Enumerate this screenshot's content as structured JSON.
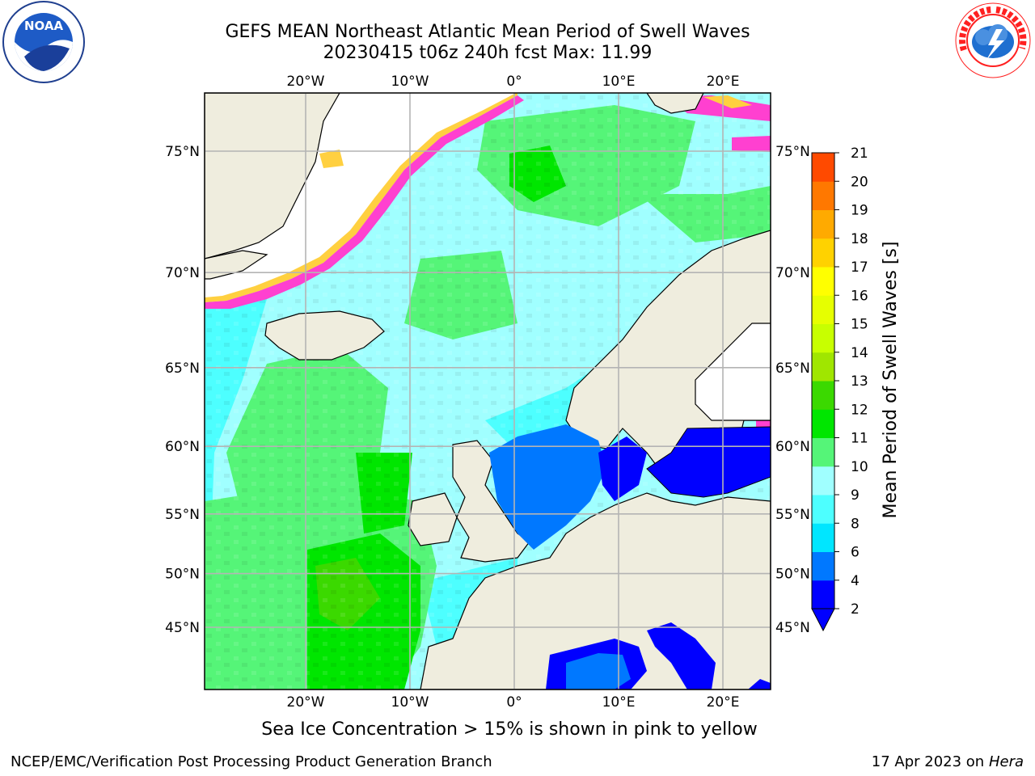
{
  "title": {
    "line1": "GEFS MEAN Northeast Atlantic Mean Period of Swell Waves",
    "line2": "20230415 t06z 240h fcst   Max: 11.99"
  },
  "logos": {
    "left": {
      "icon": "noaa-logo-icon",
      "text": "NOAA"
    },
    "right": {
      "icon": "nws-logo-icon",
      "ring_text": "NATIONAL WEATHER SERVICE"
    }
  },
  "map": {
    "lon_ticks": [
      "20°W",
      "10°W",
      "0°",
      "10°E",
      "20°E"
    ],
    "lon_values": [
      -20,
      -10,
      0,
      10,
      20
    ],
    "lat_ticks": [
      "75°N",
      "70°N",
      "65°N",
      "60°N",
      "55°N",
      "50°N",
      "45°N"
    ],
    "lat_values": [
      75,
      70,
      65,
      60,
      55,
      50,
      45
    ],
    "colors": {
      "land": "#efedde",
      "ice_free_white": "#ffffff",
      "grid": "#b4b4b4"
    }
  },
  "colorbar": {
    "label": "Mean Period of Swell Waves [s]",
    "ticks": [
      "2",
      "4",
      "6",
      "8",
      "9",
      "10",
      "11",
      "12",
      "13",
      "14",
      "15",
      "16",
      "17",
      "18",
      "19",
      "20",
      "21"
    ],
    "colors": [
      "#0000ff",
      "#0078ff",
      "#00e6ff",
      "#4dffff",
      "#a0ffff",
      "#55f578",
      "#00e600",
      "#3bd900",
      "#a0e600",
      "#c8ff00",
      "#e6ff00",
      "#ffff00",
      "#ffd200",
      "#ffaa00",
      "#ff7800",
      "#ff4a00",
      "#ff0000"
    ]
  },
  "caption": "Sea Ice Concentration > 15% is shown in pink to yellow",
  "footer": {
    "left": "NCEP/EMC/Verification Post Processing Product Generation Branch",
    "right_prefix": "17 Apr 2023 on ",
    "right_host": "Hera"
  }
}
